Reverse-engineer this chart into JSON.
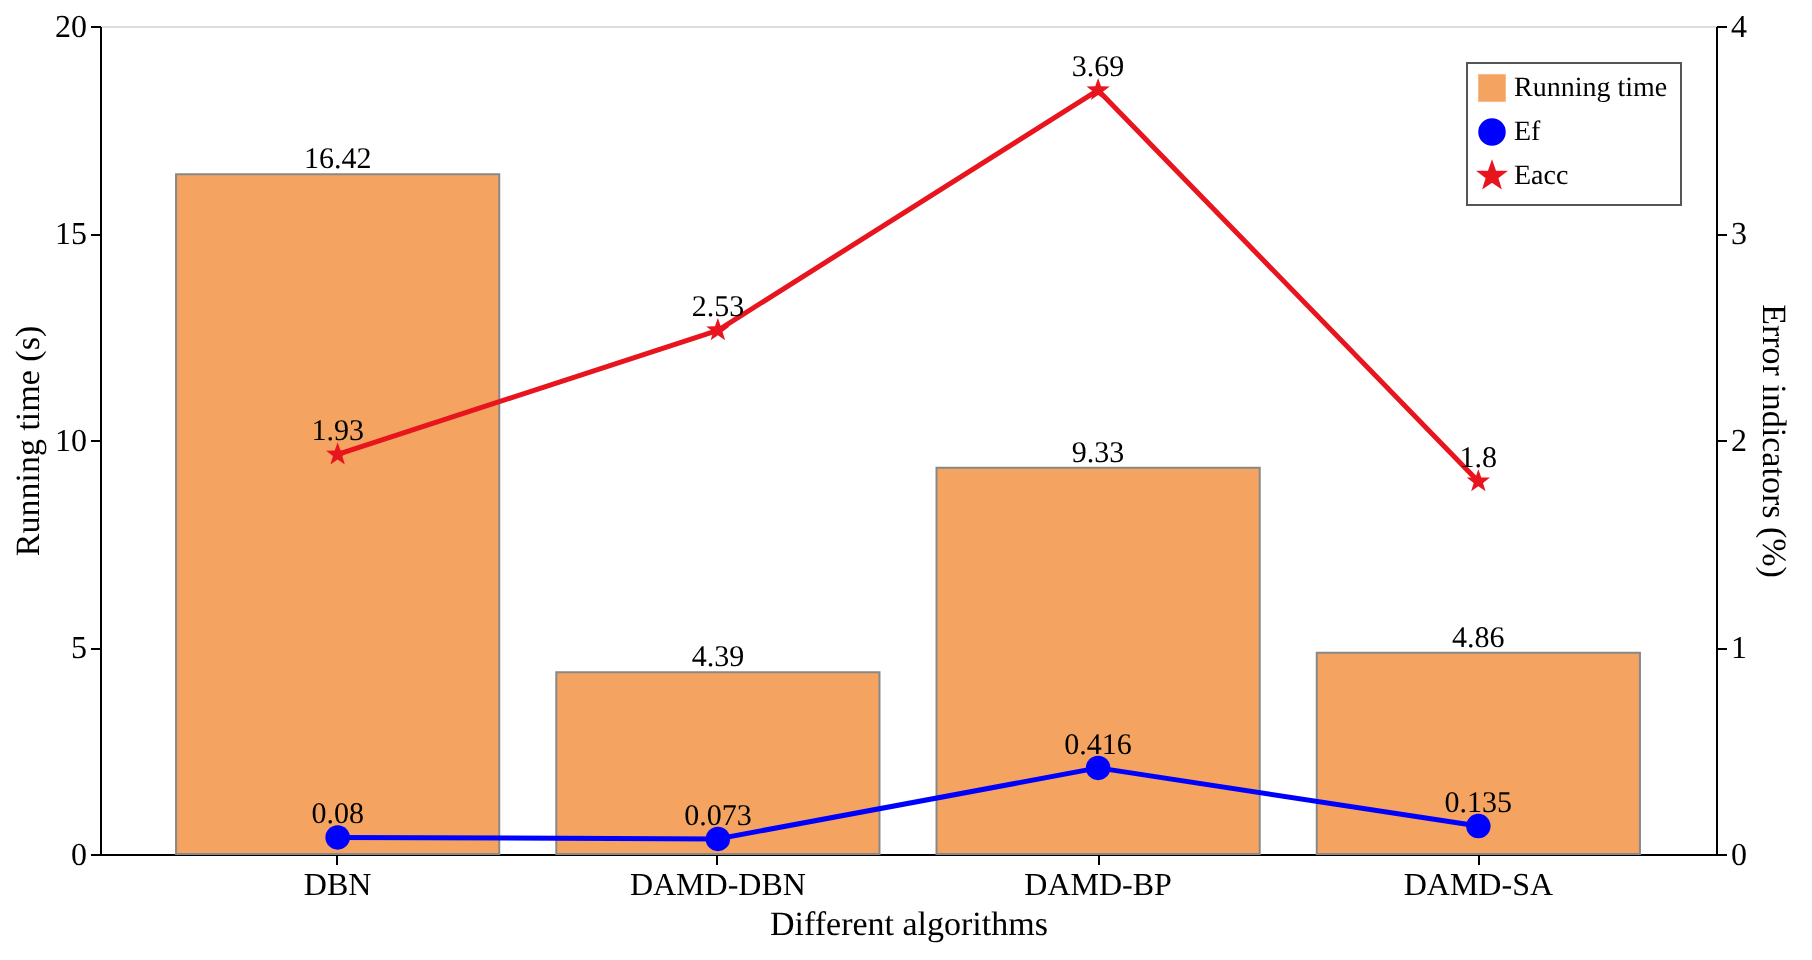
{
  "chart_data": {
    "type": "bar",
    "xlabel": "Different algorithms",
    "ylabel": "Running time (s)",
    "y2label": "Error indicators (%)",
    "categories": [
      "DBN",
      "DAMD-DBN",
      "DAMD-BP",
      "DAMD-SA"
    ],
    "series": [
      {
        "name": "Running time",
        "color": "#f4a460",
        "values": [
          16.42,
          4.39,
          9.33,
          4.86
        ]
      },
      {
        "name": "Ef",
        "type": "line",
        "axis": "y2",
        "marker": "circle",
        "color": "#0000ff",
        "values": [
          0.08,
          0.073,
          0.416,
          0.135
        ]
      },
      {
        "name": "Eacc",
        "type": "line",
        "axis": "y2",
        "marker": "star",
        "color": "#e8141e",
        "values": [
          1.93,
          2.53,
          3.69,
          1.8
        ]
      }
    ],
    "ylim": [
      0,
      20
    ],
    "yticks": [
      0,
      5,
      10,
      15,
      20
    ],
    "y2lim": [
      0,
      4
    ],
    "y2ticks": [
      0,
      1,
      2,
      3,
      4
    ],
    "data_labels": true,
    "grid": false,
    "legend": "top right",
    "line_style": "solid"
  }
}
